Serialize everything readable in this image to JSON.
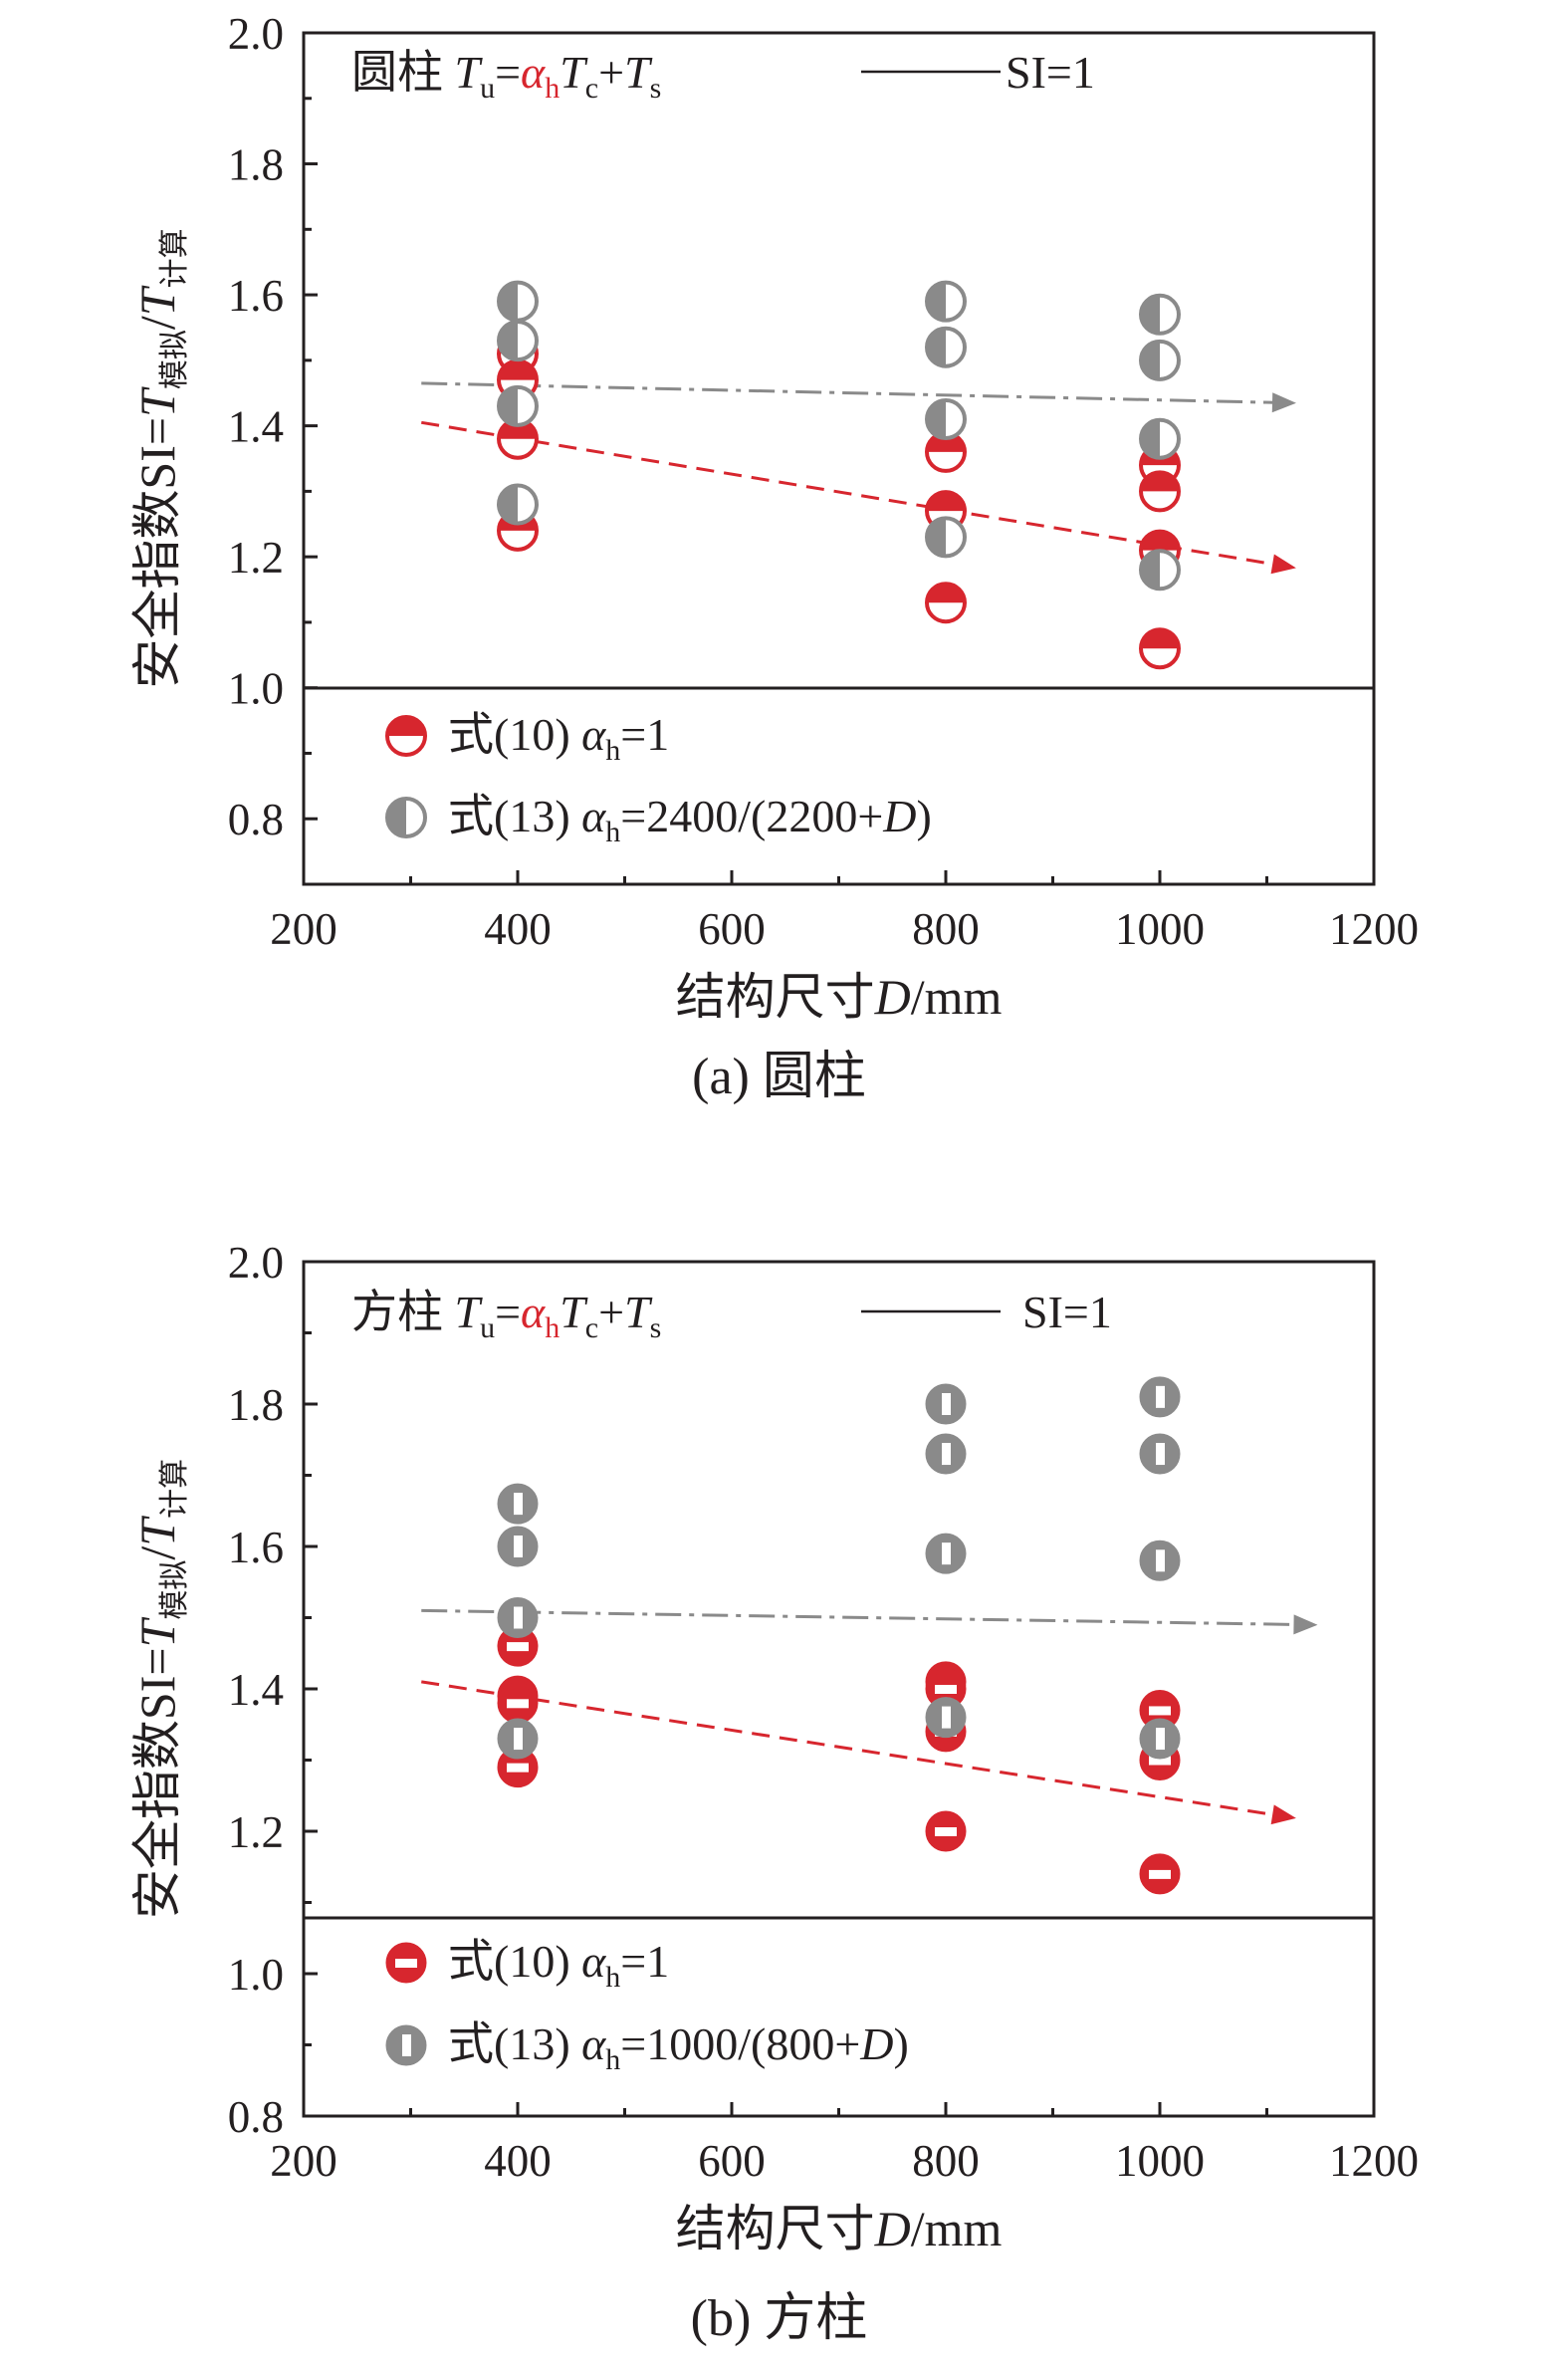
{
  "colors": {
    "red": "#d7262e",
    "gray": "#8a8a8a",
    "axis": "#231f20",
    "text": "#231f20",
    "red_trend": "#d7262e",
    "gray_trend": "#8a8a8a"
  },
  "chart_data": [
    {
      "type": "scatter",
      "caption": "(a) 圆柱",
      "xlabel": "结构尺寸D/mm",
      "ylabel": "安全指数SI=T模拟/T计算",
      "xlim": [
        200,
        1200
      ],
      "ylim": [
        0.7,
        2.0
      ],
      "xticks": [
        "200",
        "400",
        "600",
        "800",
        "1000",
        "1200"
      ],
      "yticks": [
        "0.8",
        "1.0",
        "1.2",
        "1.4",
        "1.6",
        "1.8",
        "2.0"
      ],
      "title_text": {
        "shape": "圆柱",
        "formula": "Tu=αhTc+Ts"
      },
      "reference_line": {
        "label": "SI=1",
        "y": 1.0
      },
      "series": [
        {
          "name": "式(10) αh=1",
          "marker": "half-red-circle",
          "x": [
            400,
            400,
            400,
            400,
            800,
            800,
            800,
            1000,
            1000,
            1000,
            1000
          ],
          "y": [
            1.51,
            1.47,
            1.38,
            1.24,
            1.36,
            1.27,
            1.13,
            1.34,
            1.3,
            1.21,
            1.06
          ]
        },
        {
          "name": "式(13) αh=2400/(2200+D)",
          "marker": "half-gray-circle",
          "x": [
            400,
            400,
            400,
            400,
            800,
            800,
            800,
            800,
            1000,
            1000,
            1000,
            1000
          ],
          "y": [
            1.59,
            1.53,
            1.43,
            1.28,
            1.59,
            1.52,
            1.41,
            1.23,
            1.57,
            1.5,
            1.38,
            1.18
          ]
        }
      ],
      "trend_lines": [
        {
          "style": "dash-dot",
          "color": "gray",
          "from": [
            310,
            1.465
          ],
          "to": [
            1120,
            1.435
          ]
        },
        {
          "style": "dashed",
          "color": "red",
          "from": [
            310,
            1.405
          ],
          "to": [
            1120,
            1.185
          ]
        }
      ]
    },
    {
      "type": "scatter",
      "caption": "(b) 方柱",
      "xlabel": "结构尺寸D/mm",
      "ylabel": "安全指数SI=T模拟/T计算",
      "xlim": [
        200,
        1200
      ],
      "ylim": [
        0.8,
        2.0
      ],
      "xticks": [
        "200",
        "400",
        "600",
        "800",
        "1000",
        "1200"
      ],
      "yticks": [
        "0.8",
        "1.0",
        "1.2",
        "1.4",
        "1.6",
        "1.8",
        "2.0"
      ],
      "title_text": {
        "shape": "方柱",
        "formula": "Tu=αhTc+Ts"
      },
      "reference_line": {
        "label": "SI=1"
      },
      "series": [
        {
          "name": "式(10) αh=1",
          "marker": "bar-red-circle",
          "x": [
            400,
            400,
            400,
            400,
            800,
            800,
            800,
            800,
            1000,
            1000,
            1000
          ],
          "y": [
            1.46,
            1.39,
            1.38,
            1.29,
            1.41,
            1.4,
            1.34,
            1.2,
            1.37,
            1.3,
            1.14
          ]
        },
        {
          "name": "式(13) αh=1000/(800+D)",
          "marker": "bar-gray-circle",
          "x": [
            400,
            400,
            400,
            400,
            800,
            800,
            800,
            800,
            1000,
            1000,
            1000,
            1000
          ],
          "y": [
            1.66,
            1.6,
            1.5,
            1.33,
            1.8,
            1.73,
            1.59,
            1.36,
            1.81,
            1.73,
            1.58,
            1.33
          ]
        }
      ],
      "trend_lines": [
        {
          "style": "dash-dot",
          "color": "gray",
          "from": [
            310,
            1.51
          ],
          "to": [
            1140,
            1.49
          ]
        },
        {
          "style": "dashed",
          "color": "red",
          "from": [
            310,
            1.41
          ],
          "to": [
            1120,
            1.22
          ]
        }
      ]
    }
  ]
}
